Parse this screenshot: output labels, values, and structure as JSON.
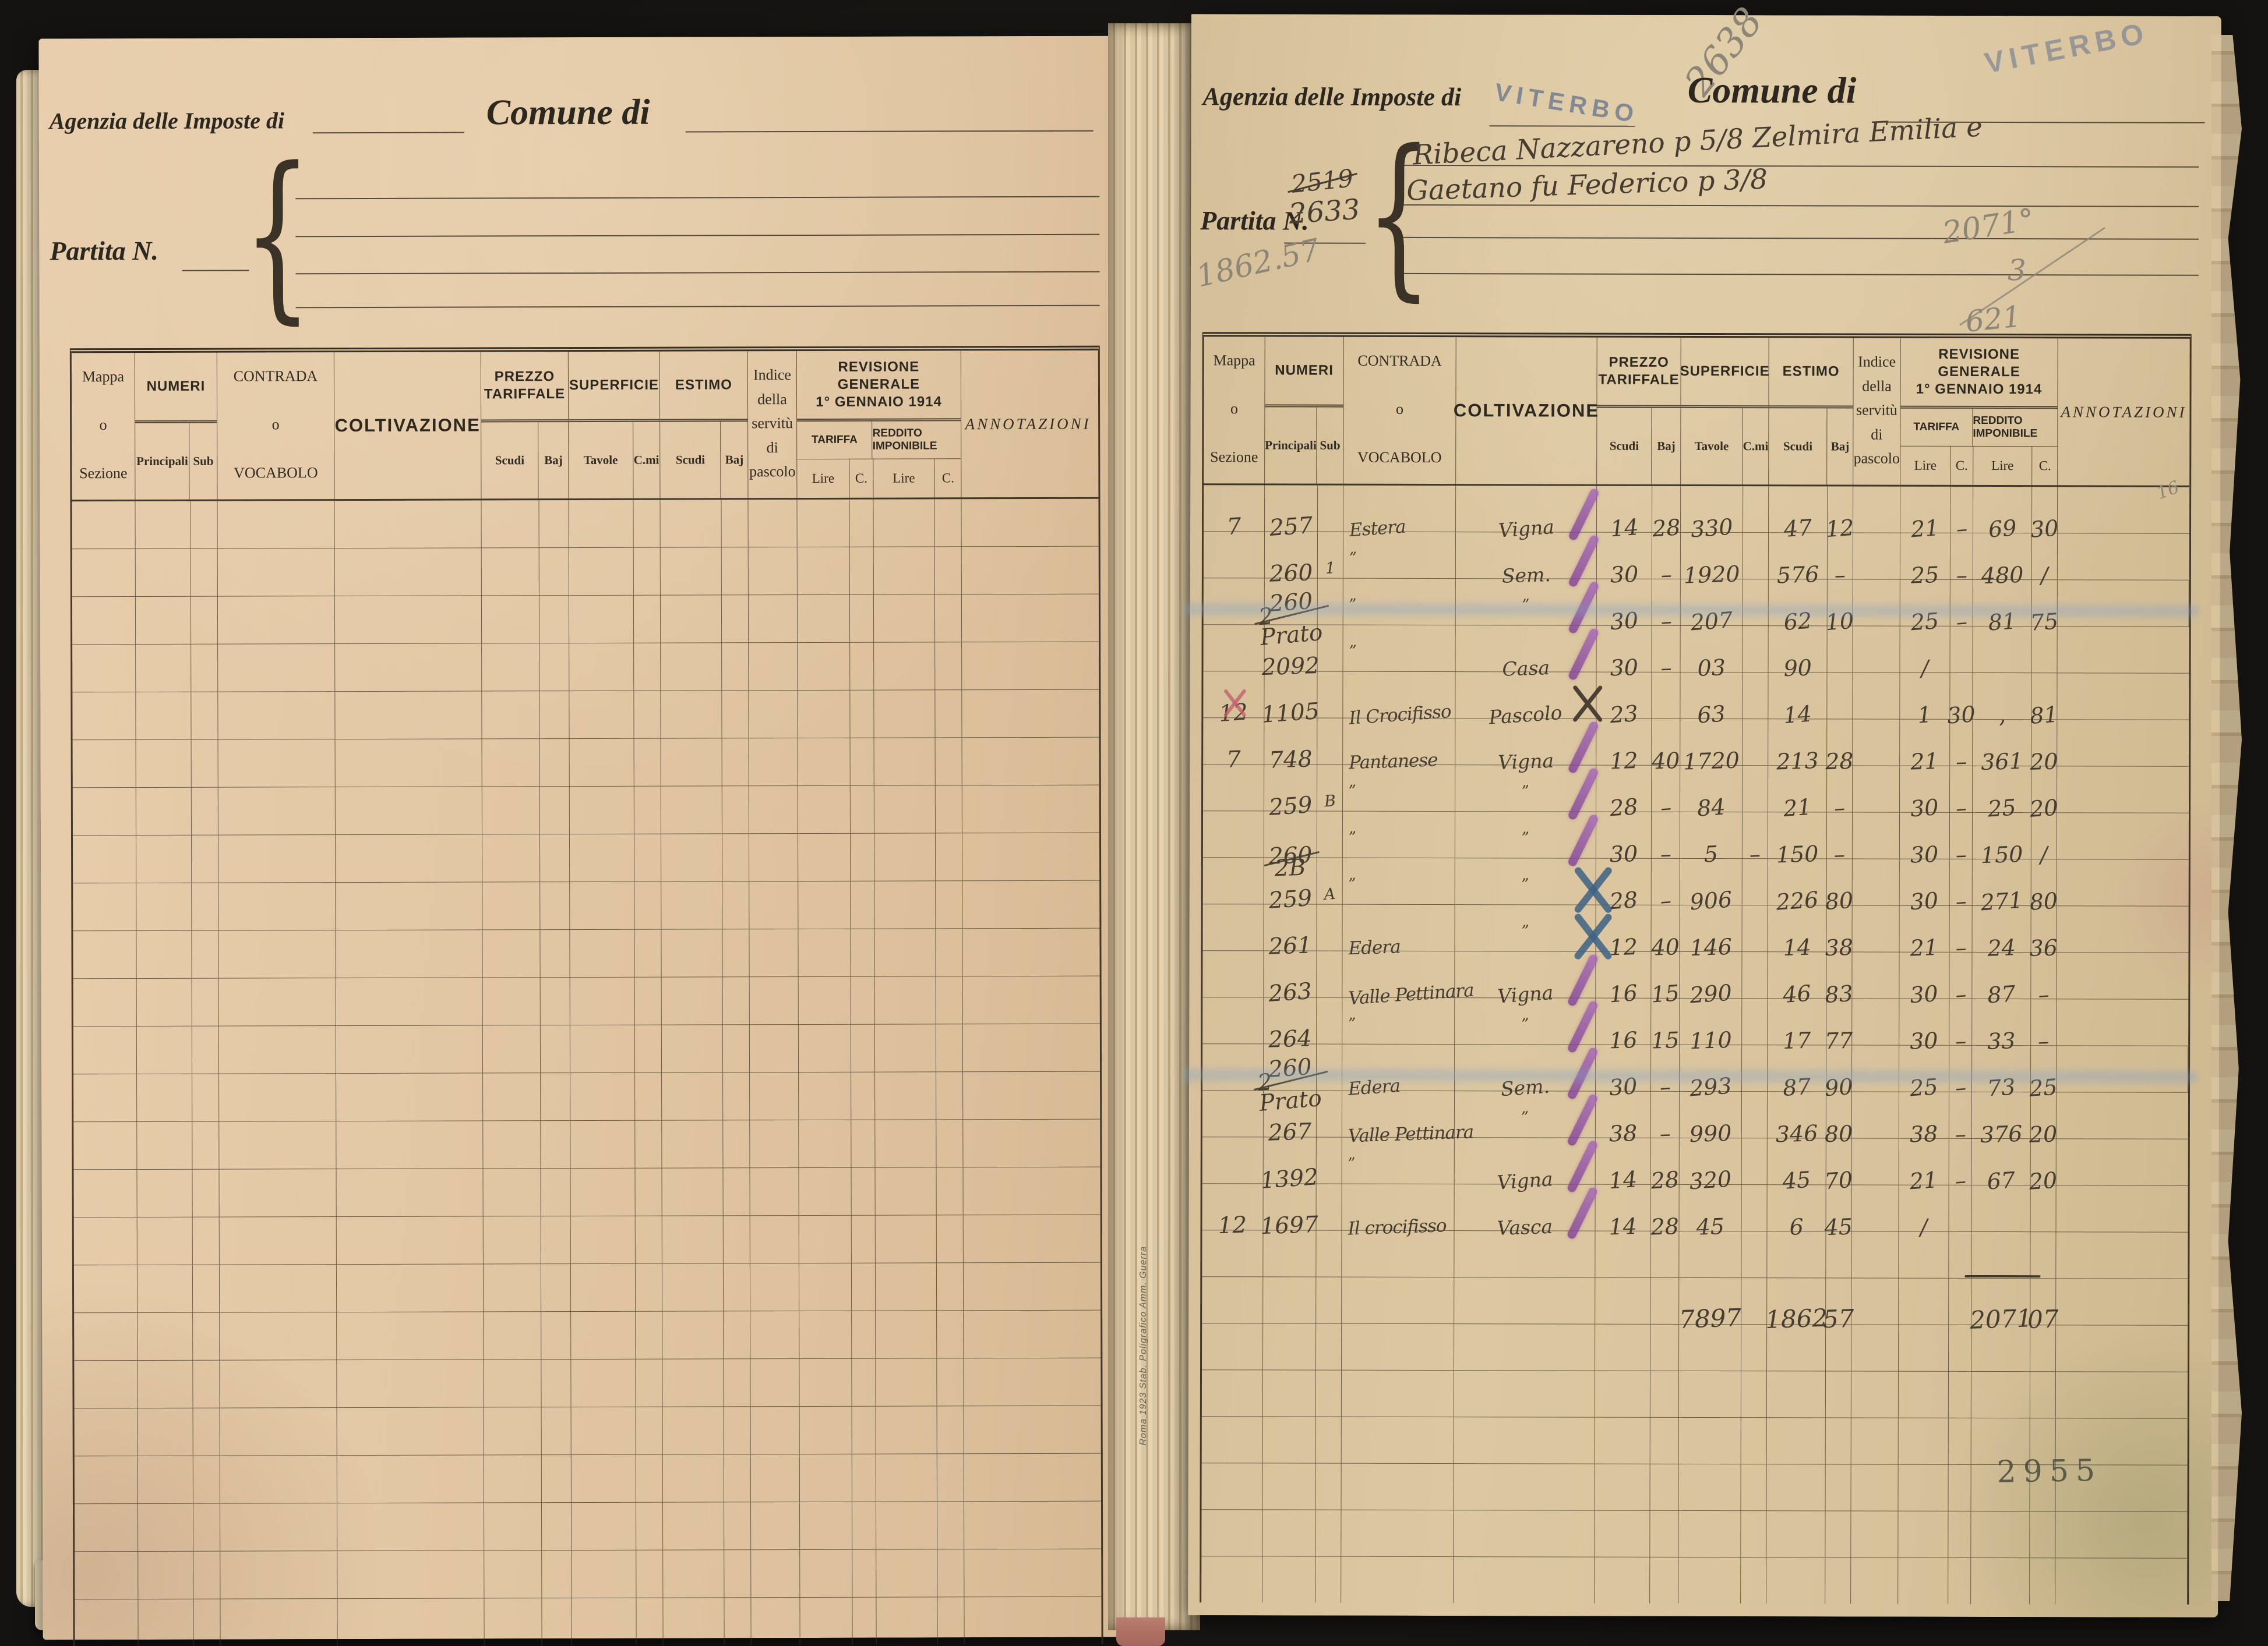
{
  "left_page": {
    "agency_label": "Agenzia delle Imposte di",
    "comune_label": "Comune di",
    "partita_label": "Partita N."
  },
  "right_page": {
    "agency_label": "Agenzia delle Imposte di",
    "agency_stamp": "VITERBO",
    "comune_label": "Comune di",
    "comune_stamp": "VITERBO",
    "page_number_pencil": "2638",
    "partita_label": "Partita N.",
    "partita_old": "2519",
    "partita_new": "2633",
    "holder_line1": "Ribeca Nazzareno p 5/8 Zelmira Emilia e",
    "holder_line2": "Gaetano fu Federico p 3/8",
    "pencil_total_left": "1862.57",
    "pencil_notes_right": [
      "2071°",
      "3",
      "621"
    ],
    "bottom_stamp": "2955",
    "printer_imprint": "Roma 1923  Stab. Poligrafico  Amm. Guerra"
  },
  "table_header": {
    "mappa": [
      "Mappa",
      "o",
      "Sezione"
    ],
    "numeri": "NUMERI",
    "principali": "Principali",
    "sub": "Sub",
    "contrada": [
      "CONTRADA",
      "o",
      "VOCABOLO"
    ],
    "coltivazione": "COLTIVAZIONE",
    "prezzo": [
      "PREZZO",
      "TARIFFALE"
    ],
    "superficie": "SUPERFICIE",
    "estimo": "ESTIMO",
    "scudi": "Scudi",
    "baj": "Baj",
    "tavole": "Tavole",
    "cmi": "C.mi",
    "indice": [
      "Indice",
      "della",
      "servitù",
      "di",
      "pascolo"
    ],
    "revisione": [
      "REVISIONE GENERALE",
      "1° GENNAIO 1914"
    ],
    "tariffa": "TARIFFA",
    "reddito": "REDDITO IMPONIBILE",
    "lire": "Lire",
    "c": "C.",
    "annotazioni": "ANNOTAZIONI"
  },
  "rows": [
    {
      "mappa": "7",
      "num": "257",
      "sub": "",
      "contrada": "Estera",
      "colt": "Vigna",
      "mark": "slash",
      "pz_s": "14",
      "pz_b": "28",
      "sup_t": "330",
      "sup_c": "",
      "est_s": "47",
      "est_b": "12",
      "tar_l": "21",
      "tar_c": "–",
      "red_l": "69",
      "red_c": "30",
      "annot_pencil": "16"
    },
    {
      "mappa": "",
      "num": "260",
      "sub": "1",
      "contrada": "”",
      "colt": "Sem.",
      "mark": "slash",
      "pz_s": "30",
      "pz_b": "–",
      "sup_t": "1920",
      "sup_c": "",
      "est_s": "576",
      "est_b": "–",
      "tar_l": "25",
      "tar_c": "–",
      "red_l": "480",
      "red_c": "/"
    },
    {
      "mappa": "",
      "num": "260",
      "num_note": "2 Prato",
      "sub": "",
      "contrada": "”",
      "colt": "”",
      "mark": "slash",
      "pz_s": "30",
      "pz_b": "–",
      "sup_t": "207",
      "sup_c": "",
      "est_s": "62",
      "est_b": "10",
      "tar_l": "25",
      "tar_c": "–",
      "red_l": "81",
      "red_c": "75",
      "smear": true
    },
    {
      "mappa": "",
      "num": "2092",
      "sub": "",
      "contrada": "”",
      "colt": "Casa",
      "mark": "slash",
      "pz_s": "30",
      "pz_b": "–",
      "sup_t": "03",
      "sup_c": "",
      "est_s": "90",
      "est_b": "",
      "tar_l": "/",
      "tar_c": "",
      "red_l": "",
      "red_c": ""
    },
    {
      "mappa": "12",
      "mappa_mark": "red-x",
      "num": "1105",
      "sub": "",
      "contrada": "Il Crocifisso",
      "colt": "Pascolo",
      "colt_mark": "ink-x",
      "mark": "",
      "pz_s": "23",
      "pz_b": "",
      "sup_t": "63",
      "sup_c": "",
      "est_s": "14",
      "est_b": "",
      "tar_l": "1",
      "tar_c": "30",
      "red_l": ",",
      "red_c": "81"
    },
    {
      "mappa": "7",
      "num": "748",
      "sub": "",
      "contrada": "Pantanese",
      "colt": "Vigna",
      "mark": "slash",
      "pz_s": "12",
      "pz_b": "40",
      "sup_t": "1720",
      "sup_c": "",
      "est_s": "213",
      "est_b": "28",
      "tar_l": "21",
      "tar_c": "–",
      "red_l": "361",
      "red_c": "20"
    },
    {
      "mappa": "",
      "num": "259",
      "sub": "B",
      "contrada": "”",
      "colt": "”",
      "mark": "slash",
      "pz_s": "28",
      "pz_b": "–",
      "sup_t": "84",
      "sup_c": "",
      "est_s": "21",
      "est_b": "–",
      "tar_l": "30",
      "tar_c": "–",
      "red_l": "25",
      "red_c": "20"
    },
    {
      "mappa": "",
      "num": "260",
      "num_note": "2B",
      "sub": "",
      "contrada": "”",
      "colt": "”",
      "mark": "slash",
      "pz_s": "30",
      "pz_b": "–",
      "sup_t": "5",
      "sup_c": "–",
      "est_s": "150",
      "est_b": "–",
      "tar_l": "30",
      "tar_c": "–",
      "red_l": "150",
      "red_c": "/"
    },
    {
      "mappa": "",
      "num": "259",
      "sub": "A",
      "contrada": "”",
      "colt": "”",
      "mark": "blue-x",
      "pz_s": "28",
      "pz_b": "–",
      "sup_t": "906",
      "sup_c": "",
      "est_s": "226",
      "est_b": "80",
      "tar_l": "30",
      "tar_c": "–",
      "red_l": "271",
      "red_c": "80"
    },
    {
      "mappa": "",
      "num": "261",
      "sub": "",
      "contrada": "Edera",
      "colt": "”",
      "mark": "blue-x",
      "pz_s": "12",
      "pz_b": "40",
      "sup_t": "146",
      "sup_c": "",
      "est_s": "14",
      "est_b": "38",
      "tar_l": "21",
      "tar_c": "–",
      "red_l": "24",
      "red_c": "36"
    },
    {
      "mappa": "",
      "num": "263",
      "sub": "",
      "contrada": "Valle Pettinara",
      "colt": "Vigna",
      "mark": "slash",
      "pz_s": "16",
      "pz_b": "15",
      "sup_t": "290",
      "sup_c": "",
      "est_s": "46",
      "est_b": "83",
      "tar_l": "30",
      "tar_c": "–",
      "red_l": "87",
      "red_c": "–"
    },
    {
      "mappa": "",
      "num": "264",
      "sub": "",
      "contrada": "”",
      "colt": "”",
      "mark": "slash",
      "pz_s": "16",
      "pz_b": "15",
      "sup_t": "110",
      "sup_c": "",
      "est_s": "17",
      "est_b": "77",
      "tar_l": "30",
      "tar_c": "–",
      "red_l": "33",
      "red_c": "–"
    },
    {
      "mappa": "",
      "num": "260",
      "num_note": "2 Prato",
      "sub": "",
      "contrada": "Edera",
      "colt": "Sem.",
      "mark": "slash",
      "pz_s": "30",
      "pz_b": "–",
      "sup_t": "293",
      "sup_c": "",
      "est_s": "87",
      "est_b": "90",
      "tar_l": "25",
      "tar_c": "–",
      "red_l": "73",
      "red_c": "25",
      "smear": true
    },
    {
      "mappa": "",
      "num": "267",
      "sub": "",
      "contrada": "Valle Pettinara",
      "colt": "”",
      "mark": "slash",
      "pz_s": "38",
      "pz_b": "–",
      "sup_t": "990",
      "sup_c": "",
      "est_s": "346",
      "est_b": "80",
      "tar_l": "38",
      "tar_c": "–",
      "red_l": "376",
      "red_c": "20"
    },
    {
      "mappa": "",
      "num": "1392",
      "sub": "",
      "contrada": "”",
      "colt": "Vigna",
      "mark": "slash",
      "pz_s": "14",
      "pz_b": "28",
      "sup_t": "320",
      "sup_c": "",
      "est_s": "45",
      "est_b": "70",
      "tar_l": "21",
      "tar_c": "–",
      "red_l": "67",
      "red_c": "20"
    },
    {
      "mappa": "12",
      "num": "1697",
      "sub": "",
      "contrada": "Il crocifisso",
      "colt": "Vasca",
      "mark": "slash",
      "pz_s": "14",
      "pz_b": "28",
      "sup_t": "45",
      "sup_c": "",
      "est_s": "6",
      "est_b": "45",
      "tar_l": "/",
      "tar_c": "",
      "red_l": "",
      "red_c": ""
    }
  ],
  "totals": {
    "sup_t": "7897",
    "est_s": "1862",
    "est_b": "57",
    "red_l": "2071",
    "red_c": "07"
  }
}
